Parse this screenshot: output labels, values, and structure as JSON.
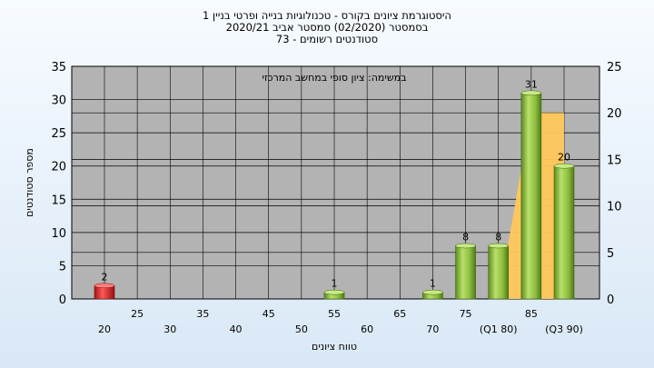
{
  "title_lines": [
    "היסטוגרמת ציונים בקורס - טכנולוגיות בנייה ופרטי בניין 1",
    "בסמסטר (02/2020) סמסטר אביב 2020/21",
    "סטודנטים רשומים - 73"
  ],
  "chart_data": {
    "type": "bar",
    "title": "היסטוגרמת ציונים בקורס - טכנולוגיות בנייה ופרטי בניין 1",
    "annotation": "במשימה: ציון סופי במחשב המרכזי",
    "xlabel": "טווח ציונים",
    "ylabel": "מספר סטודנטים",
    "ylim": [
      0,
      35
    ],
    "y2lim": [
      0,
      25
    ],
    "y_ticks": [
      0,
      5,
      10,
      15,
      20,
      25,
      30,
      35
    ],
    "y2_ticks": [
      0,
      5,
      10,
      15,
      20,
      25
    ],
    "x_ticks_row1": [
      "25",
      "35",
      "45",
      "55",
      "65",
      "75",
      "85"
    ],
    "x_ticks_row2": [
      "20",
      "30",
      "40",
      "50",
      "60",
      "70",
      "(Q1 80)",
      "(Q3 90)"
    ],
    "categories": [
      "20",
      "25",
      "30",
      "35",
      "40",
      "45",
      "50",
      "55",
      "60",
      "65",
      "70",
      "75",
      "80",
      "85",
      "90"
    ],
    "values": [
      2,
      0,
      0,
      0,
      0,
      0,
      0,
      1,
      0,
      0,
      1,
      8,
      8,
      31,
      20
    ],
    "highlight_category": "20",
    "grid": true,
    "legend": "none",
    "colors": {
      "bar": "#8fbf3f",
      "bar_highlight": "#d82a2a",
      "area": "#ffc85a",
      "plot_bg": "#b3b3b3",
      "grid": "#000000"
    },
    "area": {
      "x": [
        "75",
        "80",
        "85",
        "90"
      ],
      "y": [
        0,
        0,
        28,
        28
      ]
    }
  }
}
